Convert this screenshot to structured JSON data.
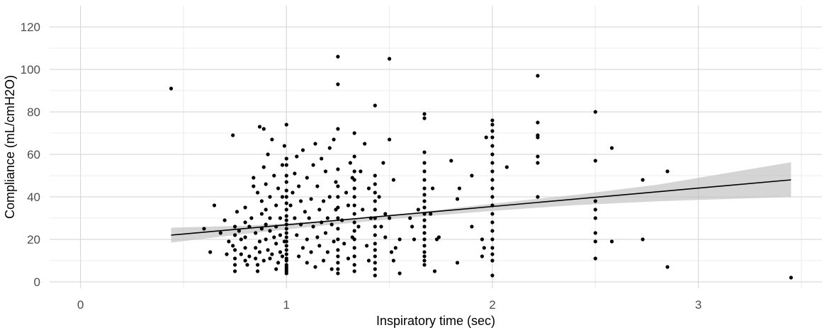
{
  "colors": {
    "background": "#ffffff",
    "grid_major": "#d9d9d9",
    "grid_minor": "#ececec",
    "points": "#000000",
    "line": "#000000",
    "ribbon": "#bebebe"
  },
  "chart_data": {
    "type": "scatter",
    "title": "",
    "xlabel": "Inspiratory time (sec)",
    "ylabel": "Compliance (mL/cmH2O)",
    "xlim": [
      -0.15,
      3.6
    ],
    "ylim": [
      -3,
      130
    ],
    "x_ticks": [
      0,
      1,
      2,
      3
    ],
    "x_tick_labels": [
      "0",
      "1",
      "2",
      "3"
    ],
    "y_ticks": [
      0,
      20,
      40,
      60,
      80,
      100,
      120
    ],
    "y_tick_labels": [
      "0",
      "20",
      "40",
      "60",
      "80",
      "100",
      "120"
    ],
    "grid": true,
    "legend": "none",
    "points": [
      [
        0.44,
        91
      ],
      [
        0.6,
        25
      ],
      [
        0.63,
        14
      ],
      [
        0.65,
        36
      ],
      [
        0.68,
        23
      ],
      [
        0.7,
        29
      ],
      [
        0.71,
        13
      ],
      [
        0.72,
        19
      ],
      [
        0.74,
        17
      ],
      [
        0.75,
        5
      ],
      [
        0.75,
        8
      ],
      [
        0.75,
        11
      ],
      [
        0.75,
        15
      ],
      [
        0.75,
        22
      ],
      [
        0.75,
        26
      ],
      [
        0.74,
        69
      ],
      [
        0.76,
        33
      ],
      [
        0.77,
        24
      ],
      [
        0.78,
        13
      ],
      [
        0.78,
        20
      ],
      [
        0.8,
        10
      ],
      [
        0.8,
        16
      ],
      [
        0.8,
        21
      ],
      [
        0.8,
        28
      ],
      [
        0.8,
        35
      ],
      [
        0.81,
        8
      ],
      [
        0.82,
        12
      ],
      [
        0.82,
        26
      ],
      [
        0.83,
        30
      ],
      [
        0.84,
        45
      ],
      [
        0.84,
        49
      ],
      [
        0.85,
        11
      ],
      [
        0.85,
        16
      ],
      [
        0.85,
        23
      ],
      [
        0.86,
        5
      ],
      [
        0.86,
        8
      ],
      [
        0.86,
        42
      ],
      [
        0.87,
        73
      ],
      [
        0.87,
        14
      ],
      [
        0.87,
        19
      ],
      [
        0.88,
        25
      ],
      [
        0.88,
        32
      ],
      [
        0.88,
        38
      ],
      [
        0.89,
        72
      ],
      [
        0.89,
        10
      ],
      [
        0.89,
        54
      ],
      [
        0.9,
        20
      ],
      [
        0.9,
        27
      ],
      [
        0.9,
        34
      ],
      [
        0.9,
        46
      ],
      [
        0.91,
        15
      ],
      [
        0.91,
        60
      ],
      [
        0.92,
        11
      ],
      [
        0.92,
        24
      ],
      [
        0.92,
        30
      ],
      [
        0.92,
        40
      ],
      [
        0.93,
        67
      ],
      [
        0.93,
        13
      ],
      [
        0.94,
        21
      ],
      [
        0.94,
        50
      ],
      [
        0.95,
        6
      ],
      [
        0.95,
        18
      ],
      [
        0.95,
        26
      ],
      [
        0.95,
        36
      ],
      [
        0.96,
        9
      ],
      [
        0.96,
        44
      ],
      [
        0.97,
        14
      ],
      [
        0.97,
        22
      ],
      [
        0.97,
        30
      ],
      [
        0.98,
        55
      ],
      [
        0.98,
        40
      ],
      [
        0.98,
        12
      ],
      [
        0.99,
        19
      ],
      [
        0.99,
        64
      ],
      [
        1.0,
        4
      ],
      [
        1.0,
        5
      ],
      [
        1.0,
        6
      ],
      [
        1.0,
        7
      ],
      [
        1.0,
        8
      ],
      [
        1.0,
        10
      ],
      [
        1.0,
        11
      ],
      [
        1.0,
        13
      ],
      [
        1.0,
        15
      ],
      [
        1.0,
        17
      ],
      [
        1.0,
        19
      ],
      [
        1.0,
        21
      ],
      [
        1.0,
        23
      ],
      [
        1.0,
        25
      ],
      [
        1.0,
        27
      ],
      [
        1.0,
        29
      ],
      [
        1.0,
        31
      ],
      [
        1.0,
        34
      ],
      [
        1.0,
        37
      ],
      [
        1.0,
        40
      ],
      [
        1.0,
        43
      ],
      [
        1.0,
        47
      ],
      [
        1.0,
        50
      ],
      [
        1.0,
        55
      ],
      [
        1.0,
        58
      ],
      [
        1.0,
        74
      ],
      [
        1.02,
        36
      ],
      [
        1.03,
        42
      ],
      [
        1.04,
        30
      ],
      [
        1.04,
        51
      ],
      [
        1.05,
        22
      ],
      [
        1.05,
        59
      ],
      [
        1.06,
        12
      ],
      [
        1.06,
        45
      ],
      [
        1.07,
        27
      ],
      [
        1.07,
        38
      ],
      [
        1.08,
        16
      ],
      [
        1.08,
        62
      ],
      [
        1.09,
        33
      ],
      [
        1.1,
        9
      ],
      [
        1.1,
        20
      ],
      [
        1.1,
        49
      ],
      [
        1.11,
        30
      ],
      [
        1.12,
        14
      ],
      [
        1.12,
        39
      ],
      [
        1.13,
        26
      ],
      [
        1.13,
        55
      ],
      [
        1.14,
        7
      ],
      [
        1.14,
        65
      ],
      [
        1.15,
        21
      ],
      [
        1.15,
        45
      ],
      [
        1.16,
        34
      ],
      [
        1.16,
        17
      ],
      [
        1.17,
        28
      ],
      [
        1.17,
        58
      ],
      [
        1.18,
        10
      ],
      [
        1.18,
        38
      ],
      [
        1.19,
        23
      ],
      [
        1.19,
        52
      ],
      [
        1.2,
        30
      ],
      [
        1.2,
        14
      ],
      [
        1.21,
        40
      ],
      [
        1.21,
        63
      ],
      [
        1.22,
        27
      ],
      [
        1.22,
        6
      ],
      [
        1.23,
        67
      ],
      [
        1.23,
        19
      ],
      [
        1.24,
        34
      ],
      [
        1.24,
        47
      ],
      [
        1.25,
        106
      ],
      [
        1.25,
        93
      ],
      [
        1.25,
        72
      ],
      [
        1.25,
        4
      ],
      [
        1.25,
        6
      ],
      [
        1.25,
        9
      ],
      [
        1.25,
        12
      ],
      [
        1.25,
        15
      ],
      [
        1.25,
        20
      ],
      [
        1.25,
        25
      ],
      [
        1.25,
        30
      ],
      [
        1.25,
        35
      ],
      [
        1.25,
        40
      ],
      [
        1.25,
        45
      ],
      [
        1.25,
        53
      ],
      [
        1.27,
        29
      ],
      [
        1.28,
        18
      ],
      [
        1.29,
        42
      ],
      [
        1.3,
        11
      ],
      [
        1.3,
        36
      ],
      [
        1.31,
        56
      ],
      [
        1.32,
        21
      ],
      [
        1.32,
        49
      ],
      [
        1.33,
        70
      ],
      [
        1.33,
        5
      ],
      [
        1.33,
        8
      ],
      [
        1.33,
        12
      ],
      [
        1.33,
        16
      ],
      [
        1.33,
        20
      ],
      [
        1.33,
        24
      ],
      [
        1.33,
        28
      ],
      [
        1.33,
        32
      ],
      [
        1.33,
        36
      ],
      [
        1.33,
        40
      ],
      [
        1.33,
        44
      ],
      [
        1.33,
        48
      ],
      [
        1.33,
        52
      ],
      [
        1.33,
        59
      ],
      [
        1.35,
        26
      ],
      [
        1.36,
        52
      ],
      [
        1.37,
        34
      ],
      [
        1.38,
        65
      ],
      [
        1.39,
        17
      ],
      [
        1.4,
        44
      ],
      [
        1.4,
        10
      ],
      [
        1.41,
        30
      ],
      [
        1.43,
        83
      ],
      [
        1.43,
        3
      ],
      [
        1.43,
        6
      ],
      [
        1.43,
        9
      ],
      [
        1.43,
        12
      ],
      [
        1.43,
        15
      ],
      [
        1.43,
        18
      ],
      [
        1.43,
        22
      ],
      [
        1.43,
        26
      ],
      [
        1.43,
        30
      ],
      [
        1.43,
        34
      ],
      [
        1.43,
        38
      ],
      [
        1.43,
        42
      ],
      [
        1.43,
        46
      ],
      [
        1.43,
        50
      ],
      [
        1.45,
        40
      ],
      [
        1.46,
        26
      ],
      [
        1.47,
        56
      ],
      [
        1.48,
        21
      ],
      [
        1.48,
        32
      ],
      [
        1.5,
        105
      ],
      [
        1.5,
        67
      ],
      [
        1.5,
        30
      ],
      [
        1.51,
        14
      ],
      [
        1.52,
        10
      ],
      [
        1.52,
        48
      ],
      [
        1.53,
        16
      ],
      [
        1.55,
        4
      ],
      [
        1.55,
        20
      ],
      [
        1.6,
        30
      ],
      [
        1.61,
        26
      ],
      [
        1.62,
        20
      ],
      [
        1.64,
        34
      ],
      [
        1.67,
        79
      ],
      [
        1.67,
        77
      ],
      [
        1.67,
        8
      ],
      [
        1.67,
        10
      ],
      [
        1.67,
        12
      ],
      [
        1.67,
        14
      ],
      [
        1.67,
        17
      ],
      [
        1.67,
        20
      ],
      [
        1.67,
        23
      ],
      [
        1.67,
        26
      ],
      [
        1.67,
        29
      ],
      [
        1.67,
        32
      ],
      [
        1.67,
        35
      ],
      [
        1.67,
        38
      ],
      [
        1.67,
        41
      ],
      [
        1.67,
        44
      ],
      [
        1.67,
        48
      ],
      [
        1.67,
        52
      ],
      [
        1.67,
        56
      ],
      [
        1.67,
        61
      ],
      [
        1.7,
        32
      ],
      [
        1.71,
        44
      ],
      [
        1.72,
        5
      ],
      [
        1.73,
        20
      ],
      [
        1.74,
        21
      ],
      [
        1.8,
        57
      ],
      [
        1.83,
        9
      ],
      [
        1.83,
        39
      ],
      [
        1.84,
        44
      ],
      [
        1.9,
        26
      ],
      [
        1.9,
        50
      ],
      [
        1.95,
        12
      ],
      [
        1.95,
        20
      ],
      [
        1.96,
        16
      ],
      [
        2.0,
        3
      ],
      [
        2.0,
        10
      ],
      [
        2.0,
        13
      ],
      [
        2.0,
        16
      ],
      [
        2.0,
        20
      ],
      [
        2.0,
        24
      ],
      [
        2.0,
        28
      ],
      [
        2.0,
        32
      ],
      [
        2.0,
        36
      ],
      [
        2.0,
        40
      ],
      [
        2.0,
        44
      ],
      [
        2.0,
        48
      ],
      [
        2.0,
        52
      ],
      [
        2.0,
        56
      ],
      [
        2.0,
        60
      ],
      [
        2.0,
        64
      ],
      [
        2.0,
        68
      ],
      [
        2.0,
        71
      ],
      [
        2.0,
        74
      ],
      [
        2.0,
        76
      ],
      [
        1.97,
        68
      ],
      [
        2.07,
        54
      ],
      [
        2.22,
        97
      ],
      [
        2.22,
        75
      ],
      [
        2.22,
        69
      ],
      [
        2.22,
        68
      ],
      [
        2.22,
        59
      ],
      [
        2.22,
        56
      ],
      [
        2.22,
        40
      ],
      [
        2.5,
        80
      ],
      [
        2.5,
        57
      ],
      [
        2.5,
        38
      ],
      [
        2.5,
        34
      ],
      [
        2.5,
        30
      ],
      [
        2.5,
        23
      ],
      [
        2.5,
        19
      ],
      [
        2.5,
        11
      ],
      [
        2.58,
        63
      ],
      [
        2.58,
        19
      ],
      [
        2.73,
        48
      ],
      [
        2.73,
        20
      ],
      [
        2.85,
        52
      ],
      [
        2.85,
        7
      ],
      [
        3.45,
        2
      ]
    ],
    "fit_line": {
      "x": [
        0.44,
        3.45
      ],
      "y": [
        22,
        48
      ]
    },
    "confidence_band": {
      "x": [
        0.44,
        0.8,
        1.2,
        1.6,
        2.0,
        2.4,
        2.8,
        3.2,
        3.45
      ],
      "lower": [
        18.5,
        22.6,
        26.7,
        30.3,
        33.4,
        36.1,
        37.9,
        39.2,
        39.9
      ],
      "upper": [
        25.5,
        26.4,
        28.7,
        32.3,
        36.8,
        40.9,
        45.7,
        52.2,
        56.3
      ]
    }
  }
}
